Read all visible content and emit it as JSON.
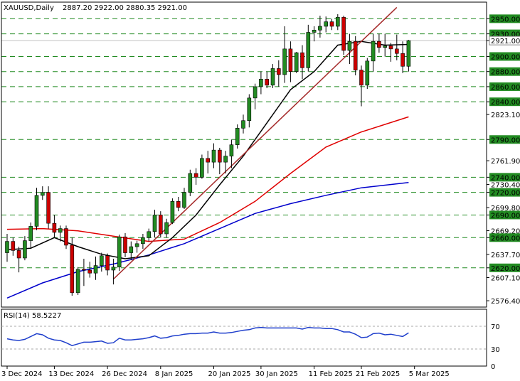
{
  "header": {
    "symbol": "XAUUSD,Daily",
    "ohlc": "2887.20 2922.00 2880.35 2921.00"
  },
  "rsi_panel": {
    "label": "RSI(14) 58.5227",
    "ticks": [
      "70",
      "30",
      "0"
    ]
  },
  "colors": {
    "bull": "#228b22",
    "bear": "#cc0000",
    "wick": "#000000",
    "ma_fast": "#000000",
    "ma_mid": "#e00000",
    "ma_slow": "#0000cc",
    "trendline": "#a52a2a",
    "levels": "#228b22",
    "rsi": "#1f3fcc",
    "grid": "#aaaaaa"
  },
  "chart_data": {
    "type": "candlestick",
    "title": "XAUUSD,Daily",
    "ylim": [
      2568,
      2972
    ],
    "price_ticks": [
      "2950.00",
      "2930.00",
      "2921.00",
      "2900.00",
      "2880.00",
      "2860.00",
      "2840.00",
      "2823.10",
      "2790.00",
      "2761.90",
      "2740.00",
      "2730.40",
      "2720.00",
      "2699.80",
      "2690.00",
      "2669.20",
      "2660.00",
      "2637.70",
      "2620.00",
      "2607.10",
      "2576.40"
    ],
    "levels": [
      2950,
      2930,
      2900,
      2880,
      2860,
      2840,
      2790,
      2740,
      2720,
      2690,
      2660,
      2620
    ],
    "last_price": 2921.0,
    "x_tick_labels": [
      "3 Dec 2024",
      "13 Dec 2024",
      "26 Dec 2024",
      "8 Jan 2025",
      "20 Jan 2025",
      "30 Jan 2025",
      "11 Feb 2025",
      "21 Feb 2025",
      "5 Mar 2025"
    ],
    "x_tick_index": [
      0,
      8,
      17,
      26,
      35,
      43,
      52,
      60,
      69
    ],
    "candles": [
      {
        "o": 2640,
        "h": 2665,
        "l": 2628,
        "c": 2655
      },
      {
        "o": 2655,
        "h": 2660,
        "l": 2636,
        "c": 2643
      },
      {
        "o": 2643,
        "h": 2648,
        "l": 2614,
        "c": 2633
      },
      {
        "o": 2633,
        "h": 2662,
        "l": 2630,
        "c": 2656
      },
      {
        "o": 2656,
        "h": 2680,
        "l": 2646,
        "c": 2675
      },
      {
        "o": 2675,
        "h": 2726,
        "l": 2670,
        "c": 2716
      },
      {
        "o": 2716,
        "h": 2728,
        "l": 2710,
        "c": 2720
      },
      {
        "o": 2720,
        "h": 2728,
        "l": 2672,
        "c": 2679
      },
      {
        "o": 2679,
        "h": 2690,
        "l": 2660,
        "c": 2667
      },
      {
        "o": 2667,
        "h": 2676,
        "l": 2655,
        "c": 2672
      },
      {
        "o": 2672,
        "h": 2676,
        "l": 2645,
        "c": 2650
      },
      {
        "o": 2650,
        "h": 2660,
        "l": 2583,
        "c": 2587
      },
      {
        "o": 2587,
        "h": 2621,
        "l": 2584,
        "c": 2618
      },
      {
        "o": 2618,
        "h": 2632,
        "l": 2596,
        "c": 2617
      },
      {
        "o": 2617,
        "h": 2628,
        "l": 2607,
        "c": 2613
      },
      {
        "o": 2613,
        "h": 2635,
        "l": 2604,
        "c": 2623
      },
      {
        "o": 2623,
        "h": 2640,
        "l": 2615,
        "c": 2636
      },
      {
        "o": 2636,
        "h": 2639,
        "l": 2610,
        "c": 2617
      },
      {
        "o": 2617,
        "h": 2632,
        "l": 2598,
        "c": 2621
      },
      {
        "o": 2621,
        "h": 2664,
        "l": 2616,
        "c": 2661
      },
      {
        "o": 2661,
        "h": 2666,
        "l": 2634,
        "c": 2640
      },
      {
        "o": 2640,
        "h": 2655,
        "l": 2630,
        "c": 2648
      },
      {
        "o": 2648,
        "h": 2656,
        "l": 2640,
        "c": 2652
      },
      {
        "o": 2652,
        "h": 2665,
        "l": 2645,
        "c": 2660
      },
      {
        "o": 2660,
        "h": 2672,
        "l": 2655,
        "c": 2668
      },
      {
        "o": 2668,
        "h": 2697,
        "l": 2660,
        "c": 2690
      },
      {
        "o": 2690,
        "h": 2695,
        "l": 2660,
        "c": 2665
      },
      {
        "o": 2665,
        "h": 2685,
        "l": 2660,
        "c": 2680
      },
      {
        "o": 2680,
        "h": 2712,
        "l": 2678,
        "c": 2708
      },
      {
        "o": 2708,
        "h": 2714,
        "l": 2695,
        "c": 2700
      },
      {
        "o": 2700,
        "h": 2726,
        "l": 2698,
        "c": 2720
      },
      {
        "o": 2720,
        "h": 2750,
        "l": 2715,
        "c": 2745
      },
      {
        "o": 2745,
        "h": 2752,
        "l": 2730,
        "c": 2740
      },
      {
        "o": 2740,
        "h": 2770,
        "l": 2738,
        "c": 2765
      },
      {
        "o": 2765,
        "h": 2775,
        "l": 2745,
        "c": 2760
      },
      {
        "o": 2760,
        "h": 2785,
        "l": 2752,
        "c": 2776
      },
      {
        "o": 2776,
        "h": 2779,
        "l": 2744,
        "c": 2760
      },
      {
        "o": 2760,
        "h": 2775,
        "l": 2745,
        "c": 2768
      },
      {
        "o": 2768,
        "h": 2790,
        "l": 2752,
        "c": 2783
      },
      {
        "o": 2783,
        "h": 2810,
        "l": 2778,
        "c": 2805
      },
      {
        "o": 2805,
        "h": 2823,
        "l": 2798,
        "c": 2815
      },
      {
        "o": 2815,
        "h": 2850,
        "l": 2806,
        "c": 2845
      },
      {
        "o": 2845,
        "h": 2864,
        "l": 2830,
        "c": 2860
      },
      {
        "o": 2860,
        "h": 2880,
        "l": 2850,
        "c": 2870
      },
      {
        "o": 2870,
        "h": 2880,
        "l": 2858,
        "c": 2862
      },
      {
        "o": 2862,
        "h": 2890,
        "l": 2858,
        "c": 2884
      },
      {
        "o": 2884,
        "h": 2895,
        "l": 2860,
        "c": 2876
      },
      {
        "o": 2876,
        "h": 2940,
        "l": 2865,
        "c": 2910
      },
      {
        "o": 2910,
        "h": 2920,
        "l": 2866,
        "c": 2880
      },
      {
        "o": 2880,
        "h": 2906,
        "l": 2878,
        "c": 2905
      },
      {
        "o": 2905,
        "h": 2915,
        "l": 2870,
        "c": 2885
      },
      {
        "o": 2885,
        "h": 2942,
        "l": 2880,
        "c": 2932
      },
      {
        "o": 2932,
        "h": 2940,
        "l": 2920,
        "c": 2935
      },
      {
        "o": 2935,
        "h": 2954,
        "l": 2925,
        "c": 2940
      },
      {
        "o": 2940,
        "h": 2953,
        "l": 2932,
        "c": 2946
      },
      {
        "o": 2946,
        "h": 2950,
        "l": 2935,
        "c": 2940
      },
      {
        "o": 2940,
        "h": 2956,
        "l": 2935,
        "c": 2952
      },
      {
        "o": 2952,
        "h": 2954,
        "l": 2902,
        "c": 2908
      },
      {
        "o": 2908,
        "h": 2930,
        "l": 2890,
        "c": 2920
      },
      {
        "o": 2920,
        "h": 2927,
        "l": 2875,
        "c": 2882
      },
      {
        "o": 2882,
        "h": 2888,
        "l": 2834,
        "c": 2862
      },
      {
        "o": 2862,
        "h": 2898,
        "l": 2857,
        "c": 2894
      },
      {
        "o": 2894,
        "h": 2930,
        "l": 2880,
        "c": 2920
      },
      {
        "o": 2920,
        "h": 2930,
        "l": 2905,
        "c": 2912
      },
      {
        "o": 2912,
        "h": 2930,
        "l": 2900,
        "c": 2914
      },
      {
        "o": 2914,
        "h": 2918,
        "l": 2893,
        "c": 2910
      },
      {
        "o": 2910,
        "h": 2929,
        "l": 2895,
        "c": 2904
      },
      {
        "o": 2904,
        "h": 2920,
        "l": 2878,
        "c": 2887
      },
      {
        "o": 2887,
        "h": 2922,
        "l": 2880,
        "c": 2921
      }
    ],
    "ma_fast": [
      [
        0,
        2644
      ],
      [
        4,
        2646
      ],
      [
        8,
        2660
      ],
      [
        12,
        2648
      ],
      [
        16,
        2638
      ],
      [
        20,
        2632
      ],
      [
        24,
        2636
      ],
      [
        28,
        2660
      ],
      [
        32,
        2690
      ],
      [
        36,
        2730
      ],
      [
        40,
        2768
      ],
      [
        44,
        2812
      ],
      [
        48,
        2856
      ],
      [
        52,
        2880
      ],
      [
        56,
        2915
      ],
      [
        60,
        2920
      ],
      [
        64,
        2915
      ],
      [
        68,
        2916
      ]
    ],
    "ma_mid": [
      [
        0,
        2671
      ],
      [
        6,
        2672
      ],
      [
        12,
        2669
      ],
      [
        18,
        2662
      ],
      [
        24,
        2655
      ],
      [
        30,
        2658
      ],
      [
        36,
        2680
      ],
      [
        42,
        2708
      ],
      [
        48,
        2745
      ],
      [
        54,
        2780
      ],
      [
        60,
        2800
      ],
      [
        68,
        2820
      ]
    ],
    "ma_slow": [
      [
        0,
        2580
      ],
      [
        6,
        2600
      ],
      [
        12,
        2615
      ],
      [
        18,
        2625
      ],
      [
        24,
        2637
      ],
      [
        30,
        2652
      ],
      [
        36,
        2672
      ],
      [
        42,
        2692
      ],
      [
        48,
        2705
      ],
      [
        54,
        2716
      ],
      [
        60,
        2726
      ],
      [
        68,
        2733
      ]
    ],
    "trendline": [
      [
        18,
        2605
      ],
      [
        66,
        2965
      ]
    ],
    "rsi": [
      48,
      46,
      45,
      47,
      52,
      57,
      55,
      49,
      46,
      45,
      41,
      36,
      39,
      42,
      42,
      43,
      44,
      40,
      41,
      49,
      46,
      46,
      47,
      48,
      50,
      53,
      49,
      50,
      53,
      54,
      56,
      57,
      57,
      58,
      58,
      60,
      58,
      58,
      59,
      61,
      63,
      64,
      67,
      68,
      67,
      67,
      67,
      67,
      67,
      67,
      65,
      68,
      67,
      67,
      66,
      66,
      64,
      60,
      60,
      56,
      50,
      51,
      57,
      58,
      55,
      56,
      54,
      52,
      58.5
    ]
  }
}
